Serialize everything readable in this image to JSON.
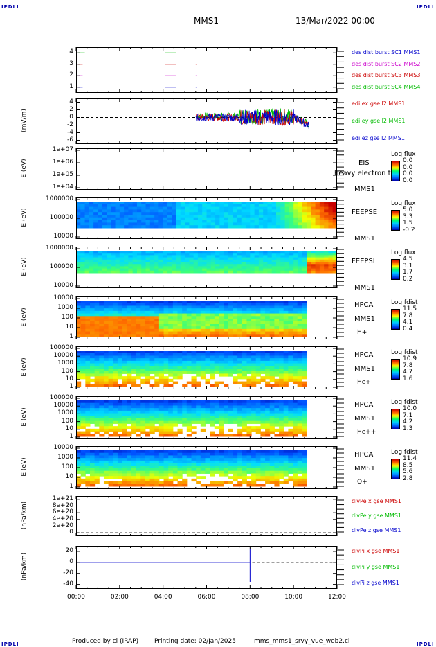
{
  "corner_label": "IPDLI",
  "header": {
    "mission": "MMS1",
    "datetime": "13/Mar/2022 00:00"
  },
  "footer": {
    "producer": "Produced by cl (IRAP)",
    "printing_date": "Printing date: 02/Jan/2025",
    "script": "mms_mms1_srvy_vue_web2.cl"
  },
  "colors": {
    "c1": "#0000cc",
    "c2": "#cc00cc",
    "c3": "#cc0000",
    "c4": "#00bb00"
  },
  "chart_data": [
    {
      "type": "line",
      "panel": "burst",
      "ylabel": "",
      "yticks": [
        "4",
        "3",
        "2",
        "1"
      ],
      "ylim": [
        0.5,
        4.5
      ],
      "legend": [
        "des dist burst SC1 MMS1",
        "des dist burst SC2 MMS2",
        "des dist burst SC3 MMS3",
        "des dist burst SC4 MMS4"
      ],
      "segments": [
        {
          "level": 4,
          "start": 0.1,
          "end": 0.4,
          "color": "c4"
        },
        {
          "level": 4,
          "start": 4.1,
          "end": 4.6,
          "color": "c4"
        },
        {
          "level": 3,
          "start": 0.1,
          "end": 0.3,
          "color": "c3"
        },
        {
          "level": 3,
          "start": 4.1,
          "end": 4.6,
          "color": "c3"
        },
        {
          "level": 3,
          "start": 5.5,
          "end": 5.55,
          "color": "c3"
        },
        {
          "level": 2,
          "start": 0.1,
          "end": 0.3,
          "color": "c2"
        },
        {
          "level": 2,
          "start": 4.1,
          "end": 4.6,
          "color": "c2"
        },
        {
          "level": 2,
          "start": 5.5,
          "end": 5.55,
          "color": "c2"
        },
        {
          "level": 1,
          "start": 0.1,
          "end": 0.3,
          "color": "c1"
        },
        {
          "level": 1,
          "start": 4.1,
          "end": 4.6,
          "color": "c1"
        },
        {
          "level": 1,
          "start": 5.5,
          "end": 5.55,
          "color": "c1"
        }
      ]
    },
    {
      "type": "line",
      "panel": "efield",
      "ylabel": "(mV/m)",
      "yticks": [
        "4",
        "2",
        "0",
        "-2",
        "-4",
        "-6"
      ],
      "ylim": [
        -7,
        5
      ],
      "legend": [
        "edi ex gse l2 MMS1",
        "edi ey gse l2 MMS1",
        "edi ez gse l2 MMS1"
      ]
    },
    {
      "type": "heatmap",
      "panel": "eis",
      "ylabel": "E (eV)",
      "yticks": [
        "1e+07",
        "1e+06",
        "1e+05",
        "1e+04"
      ],
      "instrument": [
        "EIS",
        "MMS1"
      ],
      "overlay_text": "heavy electron to",
      "cb_title": "Log flux",
      "cb_values": [
        "0.0",
        "0.0",
        "0.0",
        "0.0"
      ]
    },
    {
      "type": "heatmap",
      "panel": "feepse",
      "ylabel": "E (eV)",
      "yticks": [
        "1000000",
        "100000",
        "10000"
      ],
      "instrument": [
        "FEEPSE",
        "MMS1"
      ],
      "cb_title": "Log flux",
      "cb_values": [
        "5.0",
        "3.3",
        "1.5",
        "-0.2"
      ]
    },
    {
      "type": "heatmap",
      "panel": "feepsi",
      "ylabel": "E (eV)",
      "yticks": [
        "1000000",
        "100000",
        "10000"
      ],
      "instrument": [
        "FEEPSI",
        "MMS1"
      ],
      "cb_title": "Log flux",
      "cb_values": [
        "4.5",
        "3.1",
        "1.7",
        "0.2"
      ]
    },
    {
      "type": "heatmap",
      "panel": "hpca_h",
      "ylabel": "E (eV)",
      "yticks": [
        "10000",
        "1000",
        "100",
        "10",
        "1"
      ],
      "instrument": [
        "HPCA",
        "MMS1"
      ],
      "species": "H+",
      "cb_title": "Log fdist",
      "cb_values": [
        "11.5",
        "7.8",
        "4.1",
        "0.4"
      ]
    },
    {
      "type": "heatmap",
      "panel": "hpca_he",
      "ylabel": "E (eV)",
      "yticks": [
        "100000",
        "10000",
        "1000",
        "100",
        "10",
        "1"
      ],
      "instrument": [
        "HPCA",
        "MMS1"
      ],
      "species": "He+",
      "cb_title": "Log fdist",
      "cb_values": [
        "10.9",
        "7.8",
        "4.7",
        "1.6"
      ]
    },
    {
      "type": "heatmap",
      "panel": "hpca_hepp",
      "ylabel": "E (eV)",
      "yticks": [
        "100000",
        "10000",
        "1000",
        "100",
        "10",
        "1"
      ],
      "instrument": [
        "HPCA",
        "MMS1"
      ],
      "species": "He++",
      "cb_title": "Log fdist",
      "cb_values": [
        "10.0",
        "7.1",
        "4.2",
        "1.3"
      ]
    },
    {
      "type": "heatmap",
      "panel": "hpca_o",
      "ylabel": "E (eV)",
      "yticks": [
        "10000",
        "1000",
        "100",
        "10",
        "1"
      ],
      "instrument": [
        "HPCA",
        "MMS1"
      ],
      "species": "O+",
      "cb_title": "Log fdist",
      "cb_values": [
        "11.4",
        "8.5",
        "5.6",
        "2.8"
      ]
    },
    {
      "type": "line",
      "panel": "divpe",
      "ylabel": "(nPa/km)",
      "yticks": [
        "1e+21",
        "8e+20",
        "6e+20",
        "4e+20",
        "2e+20",
        "0"
      ],
      "ylim": [
        -1e+20,
        1.1e+21
      ],
      "legend": [
        "divPe x gse MMS1",
        "divPe y gse MMS1",
        "divPe z gse MMS1"
      ]
    },
    {
      "type": "line",
      "panel": "divpi",
      "ylabel": "(nPa/km)",
      "yticks": [
        "20",
        "0",
        "-20",
        "-40"
      ],
      "ylim": [
        -48,
        30
      ],
      "legend": [
        "divPi x gse MMS1",
        "divPi y gse MMS1",
        "divPi z gse MMS1"
      ]
    }
  ],
  "xaxis": {
    "ticks": [
      "00:00",
      "02:00",
      "04:00",
      "06:00",
      "08:00",
      "10:00",
      "12:00"
    ],
    "xlim": [
      0,
      12
    ]
  }
}
